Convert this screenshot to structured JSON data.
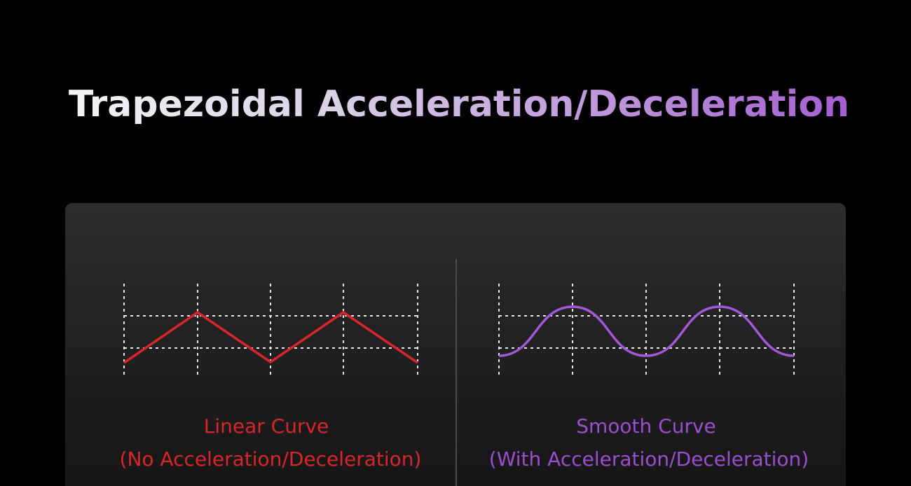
{
  "title": "Trapezoidal Acceleration/Deceleration",
  "panels": [
    {
      "label": "Linear Curve",
      "sublabel": "(No Acceleration/Deceleration)"
    },
    {
      "label": "Smooth Curve",
      "sublabel": "(With Acceleration/Deceleration)"
    }
  ]
}
